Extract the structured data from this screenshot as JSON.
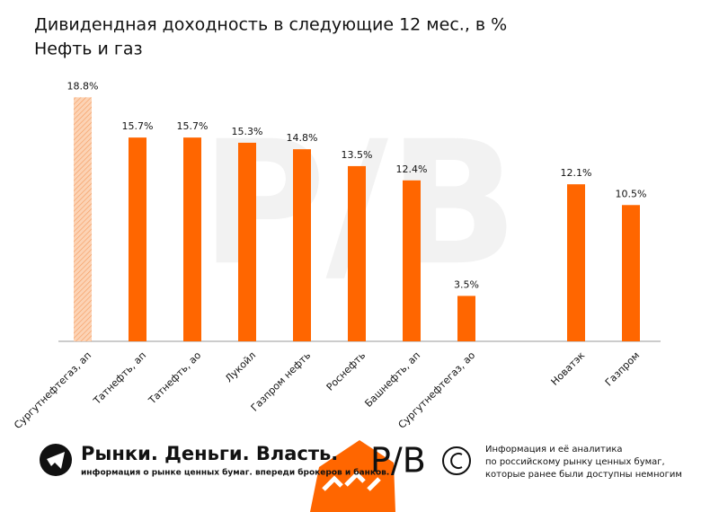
{
  "chart_data": {
    "type": "bar",
    "title": "Дивидендная доходность в следующие 12 мес., в %",
    "subtitle": "Нефть и газ",
    "categories": [
      "Сургутнефтегаз, ап",
      "Татнефть, ап",
      "Татнефть, ао",
      "Лукойл",
      "Газпром нефть",
      "Роснефть",
      "Башнефть, ап",
      "Сургутнефтегаз, ао",
      null,
      "Новатэк",
      "Газпром"
    ],
    "values": [
      18.8,
      15.7,
      15.7,
      15.3,
      14.8,
      13.5,
      12.4,
      3.5,
      null,
      12.1,
      10.5
    ],
    "value_labels": [
      "18.8%",
      "15.7%",
      "15.7%",
      "15.3%",
      "14.8%",
      "13.5%",
      "12.4%",
      "3.5%",
      null,
      "12.1%",
      "10.5%"
    ],
    "colors": [
      "#fbbd94",
      "#ff6600",
      "#ff6600",
      "#ff6600",
      "#ff6600",
      "#ff6600",
      "#ff6600",
      "#ff6600",
      null,
      "#ff6600",
      "#ff6600"
    ],
    "ylim": [
      0,
      20
    ]
  },
  "footer": {
    "brand": "Рынки. Деньги. Власть.",
    "tagline": "информация о рынке ценных бумаг. впереди брокеров и банков.",
    "logo": "Р/В",
    "note": [
      "Информация и её аналитика",
      "по российскому рынку ценных бумаг,",
      "которые ранее были доступны немногим"
    ]
  }
}
